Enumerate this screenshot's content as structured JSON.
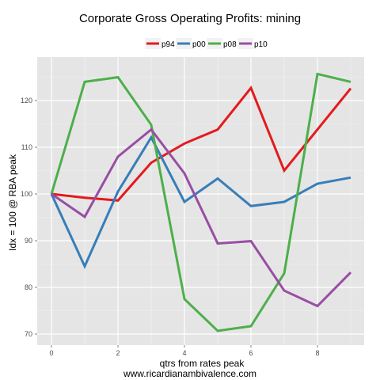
{
  "chart_data": {
    "type": "line",
    "title": "Corporate Gross Operating Profits: mining",
    "xlabel": "qtrs from rates peak",
    "ylabel": "Idx = 100 @ RBA peak",
    "caption": "www.ricardianambivalence.com",
    "x": [
      0,
      1,
      2,
      3,
      4,
      5,
      6,
      7,
      8,
      9
    ],
    "xlim": [
      0,
      9
    ],
    "ylim": [
      68,
      130
    ],
    "xticks": [
      0,
      2,
      4,
      6,
      8
    ],
    "yticks": [
      70,
      80,
      90,
      100,
      110,
      120
    ],
    "grid": true,
    "legend_position": "top",
    "series": [
      {
        "name": "p94",
        "color": "#e41a1c",
        "values": [
          100,
          99.2,
          98.6,
          106.7,
          110.8,
          113.8,
          122.7,
          105.0,
          113.8,
          122.6
        ]
      },
      {
        "name": "p00",
        "color": "#377eb8",
        "values": [
          100,
          84.5,
          100.5,
          112.1,
          98.3,
          103.3,
          97.4,
          98.3,
          102.2,
          103.5
        ]
      },
      {
        "name": "p08",
        "color": "#4daf4a",
        "values": [
          100,
          124.0,
          125.0,
          114.8,
          77.5,
          70.7,
          71.7,
          83.0,
          125.7,
          124.0
        ]
      },
      {
        "name": "p10",
        "color": "#984ea3",
        "values": [
          100,
          95.1,
          108.0,
          113.8,
          104.4,
          89.4,
          89.9,
          79.3,
          76.0,
          83.2
        ]
      }
    ]
  }
}
